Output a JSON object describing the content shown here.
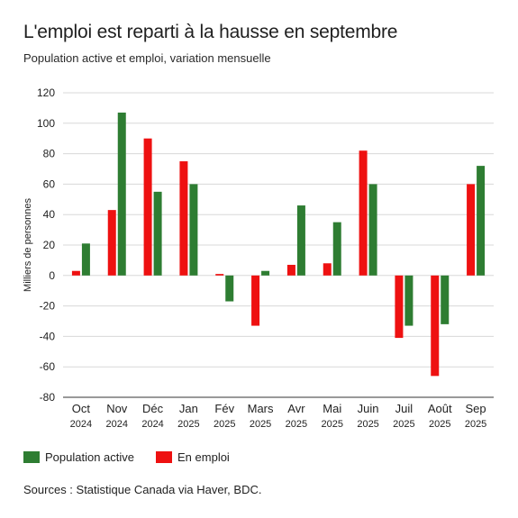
{
  "title": "L'emploi est reparti à la hausse en septembre",
  "subtitle": "Population active et emploi, variation mensuelle",
  "source": "Sources : Statistique Canada via Haver, BDC.",
  "colors": {
    "population_active": "#2e7d32",
    "en_emploi": "#ee1111",
    "grid": "#d8d8d8",
    "axis": "#333333"
  },
  "legend": [
    {
      "label": "Population active",
      "color": "#2e7d32"
    },
    {
      "label": "En emploi",
      "color": "#ee1111"
    }
  ],
  "chart_data": {
    "type": "bar",
    "ylabel": "Milliers de personnes",
    "ylim": [
      -80,
      120
    ],
    "yticks": [
      -80,
      -60,
      -40,
      -20,
      0,
      20,
      40,
      60,
      80,
      100,
      120
    ],
    "grid": "horizontal",
    "legend_position": "bottom-left",
    "categories": [
      [
        "Oct",
        "2024"
      ],
      [
        "Nov",
        "2024"
      ],
      [
        "Déc",
        "2024"
      ],
      [
        "Jan",
        "2025"
      ],
      [
        "Fév",
        "2025"
      ],
      [
        "Mars",
        "2025"
      ],
      [
        "Avr",
        "2025"
      ],
      [
        "Mai",
        "2025"
      ],
      [
        "Juin",
        "2025"
      ],
      [
        "Juil",
        "2025"
      ],
      [
        "Août",
        "2025"
      ],
      [
        "Sep",
        "2025"
      ]
    ],
    "series": [
      {
        "name": "En emploi",
        "color": "#ee1111",
        "values": [
          3,
          43,
          90,
          75,
          1,
          -33,
          7,
          8,
          82,
          -41,
          -66,
          60
        ]
      },
      {
        "name": "Population active",
        "color": "#2e7d32",
        "values": [
          21,
          107,
          55,
          60,
          -17,
          3,
          46,
          35,
          60,
          -33,
          -32,
          72
        ]
      }
    ]
  }
}
